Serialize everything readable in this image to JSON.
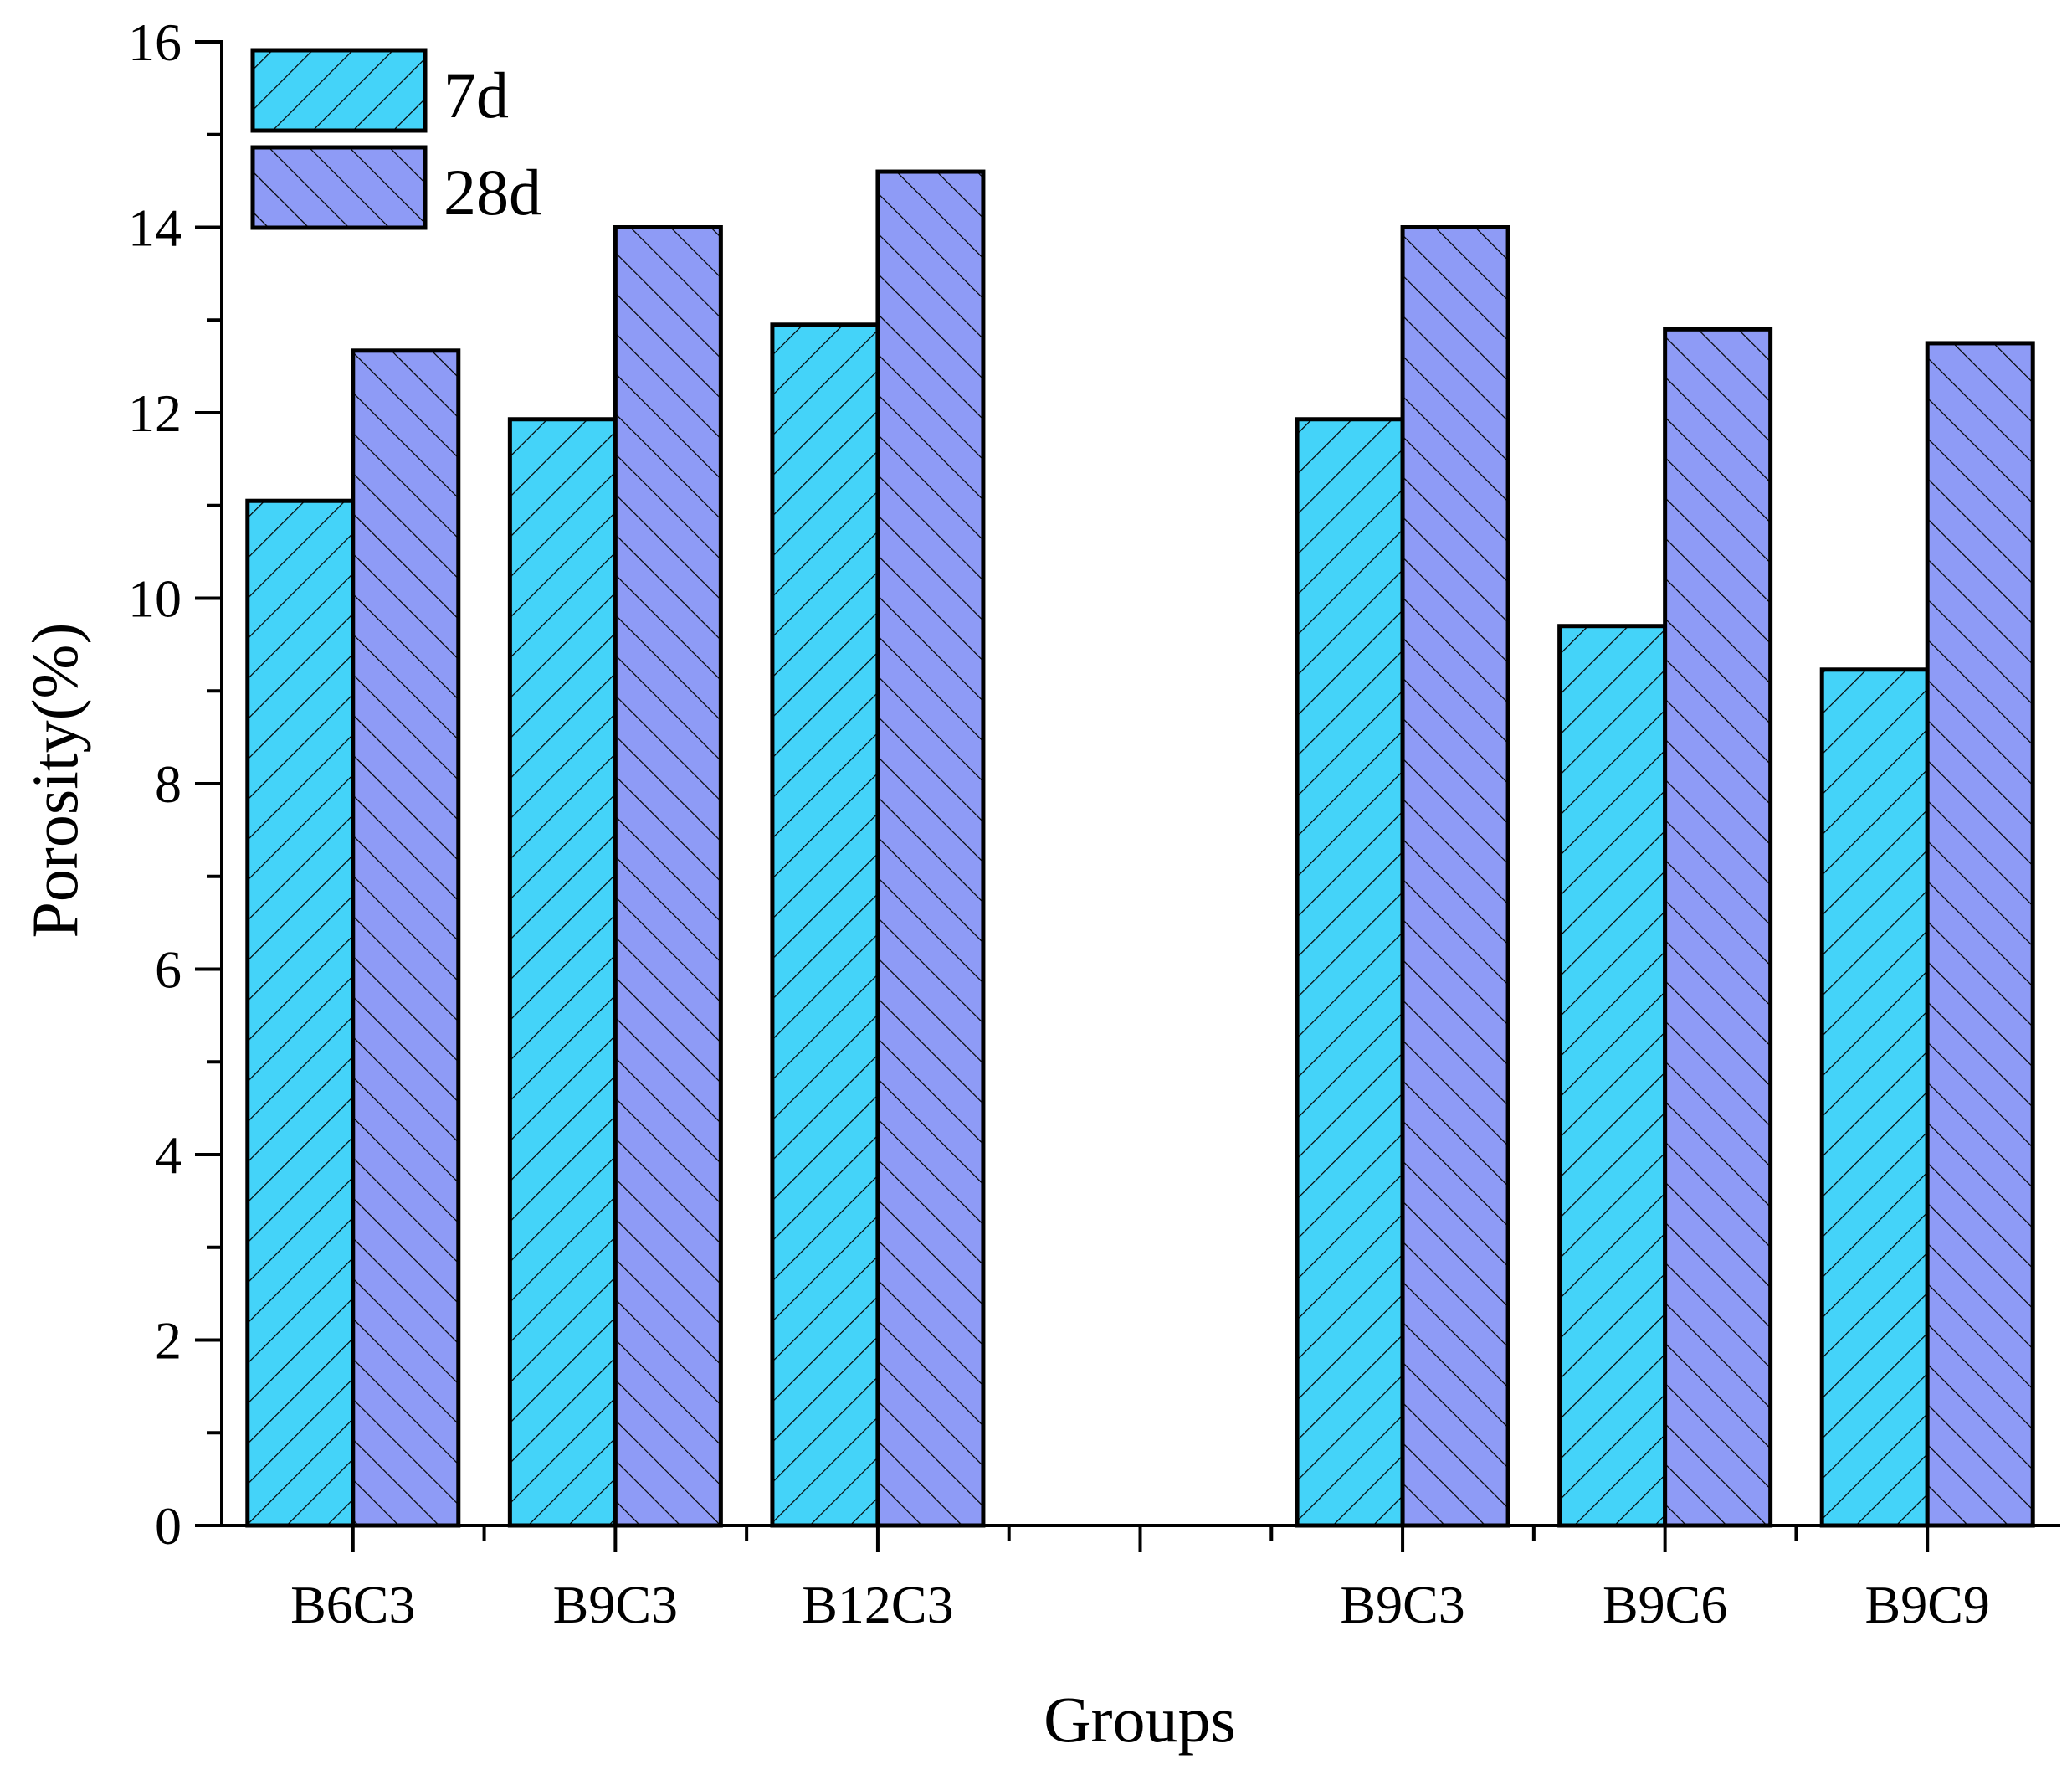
{
  "chart_data": {
    "type": "bar",
    "xlabel": "Groups",
    "ylabel": "Porosity(%)",
    "ylim": [
      0,
      16
    ],
    "y_ticks": [
      "0",
      "2",
      "4",
      "6",
      "8",
      "10",
      "12",
      "14",
      "16"
    ],
    "slots": [
      "B6C3",
      "B9C3",
      "B12C3",
      "",
      "B9C3",
      "B9C6",
      "B9C9"
    ],
    "series": [
      {
        "name": "7d",
        "values": [
          11.05,
          11.93,
          12.95,
          null,
          11.93,
          9.7,
          9.23
        ]
      },
      {
        "name": "28d",
        "values": [
          12.67,
          14.0,
          14.6,
          null,
          14.0,
          12.9,
          12.75
        ]
      }
    ],
    "legend": {
      "position": "top-left",
      "entries": [
        "7d",
        "28d"
      ]
    }
  },
  "colors": {
    "series_7d": "#44d3f9",
    "series_28d": "#8e9bf6",
    "axis": "#000000"
  }
}
